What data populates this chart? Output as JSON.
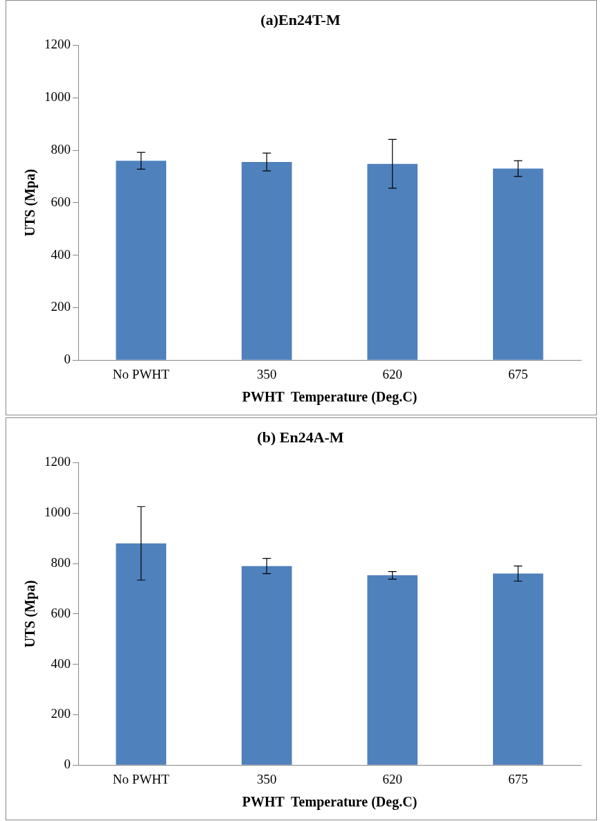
{
  "chart_data": [
    {
      "type": "bar",
      "title": "(a)En24T-M",
      "xlabel": "PWHT  Temperature (Deg.C)",
      "ylabel": "UTS (Mpa)",
      "categories": [
        "No PWHT",
        "350",
        "620",
        "675"
      ],
      "values": [
        760,
        755,
        748,
        730
      ],
      "errors": [
        32,
        34,
        93,
        30
      ],
      "color": "#4f81bd",
      "ylim": [
        0,
        1200
      ],
      "yticks": [
        0,
        200,
        400,
        600,
        800,
        1000,
        1200
      ],
      "grid": false,
      "legend": false
    },
    {
      "type": "bar",
      "title": "(b) En24A-M",
      "xlabel": "PWHT  Temperature (Deg.C)",
      "ylabel": "UTS (Mpa)",
      "categories": [
        "No PWHT",
        "350",
        "620",
        "675"
      ],
      "values": [
        880,
        790,
        753,
        760
      ],
      "errors": [
        146,
        30,
        15,
        30
      ],
      "color": "#4f81bd",
      "ylim": [
        0,
        1200
      ],
      "yticks": [
        0,
        200,
        400,
        600,
        800,
        1000,
        1200
      ],
      "grid": false,
      "legend": false
    }
  ]
}
